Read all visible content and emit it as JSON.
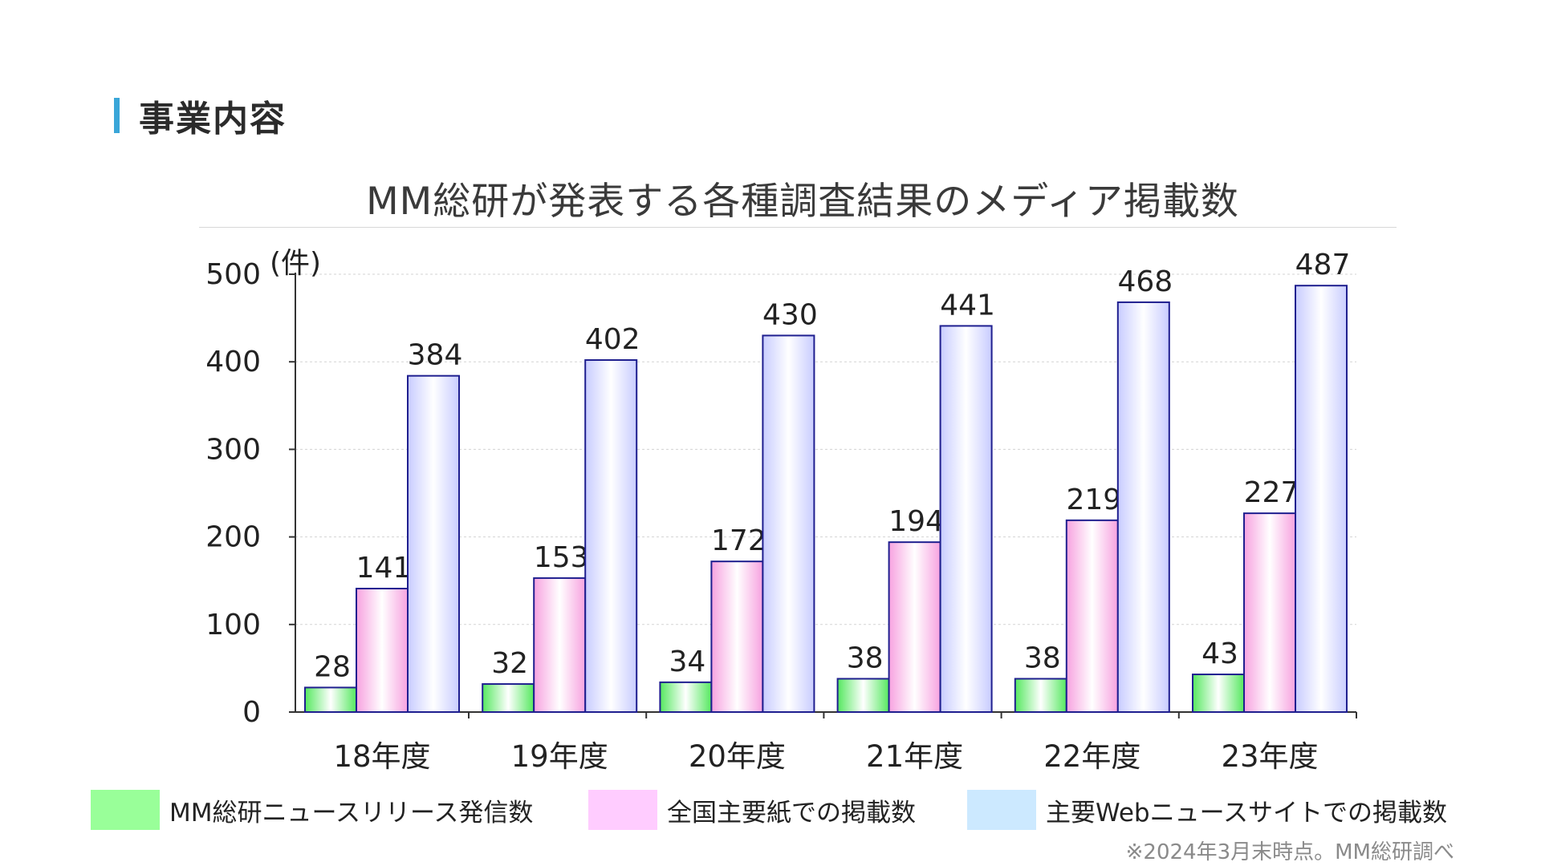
{
  "section": {
    "title": "事業内容",
    "accent_color": "#3aa6d8"
  },
  "chart_data": {
    "type": "bar",
    "title": "MM総研が発表する各種調査結果のメディア掲載数",
    "ylabel": "(件)",
    "xlabel": "",
    "ylim": [
      0,
      500
    ],
    "yticks": [
      0,
      100,
      200,
      300,
      400,
      500
    ],
    "grid": true,
    "categories": [
      "18年度",
      "19年度",
      "20年度",
      "21年度",
      "22年度",
      "23年度"
    ],
    "series": [
      {
        "name": "MM総研ニュースリリース発信数",
        "values": [
          28,
          32,
          34,
          38,
          38,
          43
        ],
        "color": "#55e85f",
        "legend_color": "#99ff99"
      },
      {
        "name": "全国主要紙での掲載数",
        "values": [
          141,
          153,
          172,
          194,
          219,
          227
        ],
        "color": "#f7a2e0",
        "legend_color": "#ffccff"
      },
      {
        "name": "主要Webニュースサイトでの掲載数",
        "values": [
          384,
          402,
          430,
          441,
          468,
          487
        ],
        "color": "#c8ccff",
        "legend_color": "#cce9ff"
      }
    ],
    "legend_position": "bottom"
  },
  "footnote": "※2024年3月末時点。MM総研調べ"
}
